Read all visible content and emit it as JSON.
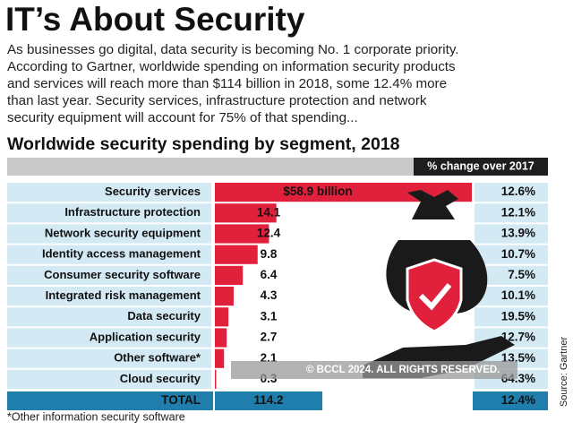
{
  "header": {
    "title": "IT’s About Security",
    "intro_lines": [
      "As businesses go digital, data security is becoming No. 1 corporate priority.",
      "According to Gartner, worldwide spending on information security products",
      "and services will reach more than $114 billion in 2018, some 12.4% more",
      "than last year. Security services, infrastructure protection and network",
      "security equipment will account for 75% of that spending..."
    ]
  },
  "chart_data": {
    "type": "bar",
    "orientation": "horizontal",
    "title": "Worldwide security spending by segment, 2018",
    "categories": [
      "Security services",
      "Infrastructure protection",
      "Network security equipment",
      "Identity access management",
      "Consumer security software",
      "Integrated risk management",
      "Data security",
      "Application security",
      "Other software*",
      "Cloud security"
    ],
    "values": [
      58.9,
      14.1,
      12.4,
      9.8,
      6.4,
      4.3,
      3.1,
      2.7,
      2.1,
      0.3
    ],
    "value_labels": [
      "$58.9 billion",
      "14.1",
      "12.4",
      "9.8",
      "6.4",
      "4.3",
      "3.1",
      "2.7",
      "2.1",
      "0.3"
    ],
    "color": "#e1203c",
    "change_header": "% change over 2017",
    "changes": [
      "12.6%",
      "12.1%",
      "13.9%",
      "10.7%",
      "7.5%",
      "10.1%",
      "19.5%",
      "12.7%",
      "13.5%",
      "64.3%"
    ],
    "total_label": "TOTAL",
    "total_value": 114.2,
    "total_change": "12.4%"
  },
  "footnote": "*Other information security software",
  "source": "Source: Gartner",
  "watermark": "© BCCL 2024. ALL RIGHTS RESERVED."
}
